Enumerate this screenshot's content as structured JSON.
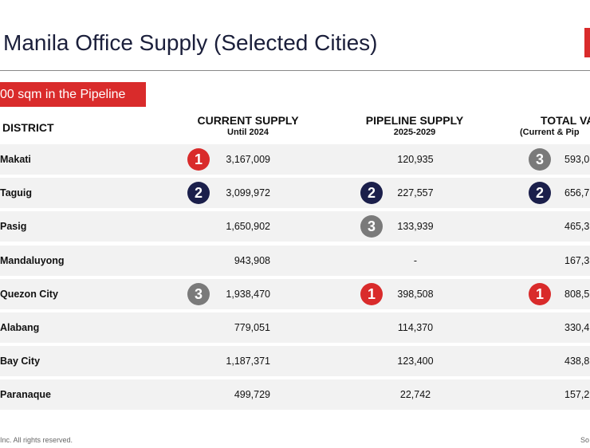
{
  "header": {
    "title": "Manila Office Supply (Selected Cities)",
    "badge": "00 sqm in the Pipeline"
  },
  "table": {
    "columns": {
      "district": "DISTRICT",
      "current": "CURRENT SUPPLY",
      "current_sub": "Until 2024",
      "pipeline": "PIPELINE SUPPLY",
      "pipeline_sub": "2025-2029",
      "total": "TOTAL VA",
      "total_sub": "(Current & Pip"
    },
    "rows": [
      {
        "district": "Makati",
        "current_rank": "1",
        "current": "3,167,009",
        "pipeline": "120,935",
        "total_rank": "3",
        "total": "593,0"
      },
      {
        "district": "Taguig",
        "current_rank": "2",
        "current": "3,099,972",
        "pipeline_rank": "2",
        "pipeline": "227,557",
        "total_rank": "2",
        "total": "656,7"
      },
      {
        "district": "Pasig",
        "current": "1,650,902",
        "pipeline_rank": "3",
        "pipeline": "133,939",
        "total": "465,3"
      },
      {
        "district": "Mandaluyong",
        "current": "943,908",
        "pipeline": "-",
        "total": "167,3"
      },
      {
        "district": "Quezon City",
        "current_rank": "3",
        "current": "1,938,470",
        "pipeline_rank": "1",
        "pipeline": "398,508",
        "total_rank": "1",
        "total": "808,5"
      },
      {
        "district": "Alabang",
        "current": "779,051",
        "pipeline": "114,370",
        "total": "330,4"
      },
      {
        "district": "Bay City",
        "current": "1,187,371",
        "pipeline": "123,400",
        "total": "438,8"
      },
      {
        "district": "Paranaque",
        "current": "499,729",
        "pipeline": "22,742",
        "total": "157,2"
      }
    ]
  },
  "footer": {
    "copyright": "Inc. All rights reserved.",
    "source": "So"
  }
}
